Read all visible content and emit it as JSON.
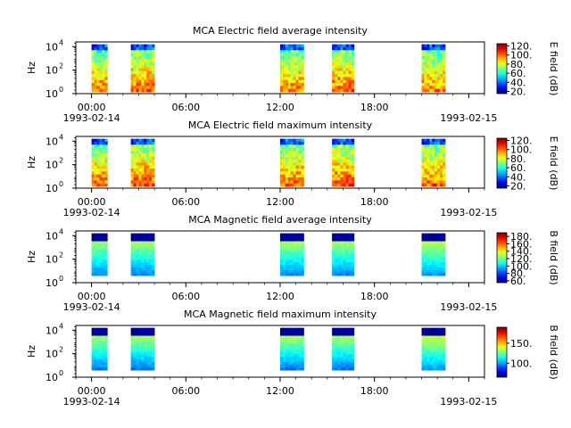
{
  "chart_data": [
    {
      "type": "heatmap",
      "title": "MCA  Electric field average intensity",
      "ylabel": "Hz",
      "colorbar_label": "E field (dB)",
      "colorbar_ticks": [
        "20.",
        "40.",
        "60.",
        "80.",
        "100.",
        "120."
      ],
      "colorbar_range": [
        15,
        125
      ],
      "x_ticks": [
        "00:00",
        "06:00",
        "12:00",
        "18:00"
      ],
      "x_tick_hours": [
        0,
        6,
        12,
        18
      ],
      "x_range_hours": [
        -1,
        25
      ],
      "date_start": "1993-02-14",
      "date_end": "1993-02-15",
      "y_ticks": [
        "10",
        "10",
        "10"
      ],
      "y_tick_exponents": [
        "0",
        "2",
        "4"
      ],
      "y_range_log10": [
        0,
        4.4
      ],
      "segments": [
        {
          "start_h": 0.0,
          "end_h": 1.0,
          "mean_db": 85
        },
        {
          "start_h": 2.5,
          "end_h": 4.0,
          "mean_db": 88
        },
        {
          "start_h": 12.0,
          "end_h": 13.5,
          "mean_db": 85
        },
        {
          "start_h": 15.3,
          "end_h": 16.7,
          "mean_db": 88
        },
        {
          "start_h": 21.0,
          "end_h": 22.5,
          "mean_db": 85
        }
      ]
    },
    {
      "type": "heatmap",
      "title": "MCA  Electric field maximum intensity",
      "ylabel": "Hz",
      "colorbar_label": "E field (dB)",
      "colorbar_ticks": [
        "20.",
        "40.",
        "60.",
        "80.",
        "100.",
        "120."
      ],
      "colorbar_range": [
        15,
        125
      ],
      "x_ticks": [
        "00:00",
        "06:00",
        "12:00",
        "18:00"
      ],
      "x_tick_hours": [
        0,
        6,
        12,
        18
      ],
      "x_range_hours": [
        -1,
        25
      ],
      "date_start": "1993-02-14",
      "date_end": "1993-02-15",
      "y_ticks": [
        "10",
        "10",
        "10"
      ],
      "y_tick_exponents": [
        "0",
        "2",
        "4"
      ],
      "y_range_log10": [
        0,
        4.4
      ],
      "segments": [
        {
          "start_h": 0.0,
          "end_h": 1.0,
          "mean_db": 88
        },
        {
          "start_h": 2.5,
          "end_h": 4.0,
          "mean_db": 90
        },
        {
          "start_h": 12.0,
          "end_h": 13.5,
          "mean_db": 88
        },
        {
          "start_h": 15.3,
          "end_h": 16.7,
          "mean_db": 90
        },
        {
          "start_h": 21.0,
          "end_h": 22.5,
          "mean_db": 88
        }
      ]
    },
    {
      "type": "heatmap",
      "title": "MCA  Magnetic field average intensity",
      "ylabel": "Hz",
      "colorbar_label": "B field (dB)",
      "colorbar_ticks": [
        "60.",
        "80.",
        "100.",
        "120.",
        "140.",
        "160.",
        "180."
      ],
      "colorbar_range": [
        55,
        190
      ],
      "x_ticks": [
        "00:00",
        "06:00",
        "12:00",
        "18:00"
      ],
      "x_tick_hours": [
        0,
        6,
        12,
        18
      ],
      "x_range_hours": [
        -1,
        25
      ],
      "date_start": "1993-02-14",
      "date_end": "1993-02-15",
      "y_ticks": [
        "10",
        "10",
        "10"
      ],
      "y_tick_exponents": [
        "0",
        "2",
        "4"
      ],
      "y_range_log10": [
        0,
        4.4
      ],
      "segments": [
        {
          "start_h": 0.0,
          "end_h": 1.0,
          "mean_db": 115
        },
        {
          "start_h": 2.5,
          "end_h": 4.0,
          "mean_db": 115
        },
        {
          "start_h": 12.0,
          "end_h": 13.5,
          "mean_db": 115
        },
        {
          "start_h": 15.3,
          "end_h": 16.7,
          "mean_db": 115
        },
        {
          "start_h": 21.0,
          "end_h": 22.5,
          "mean_db": 118
        }
      ]
    },
    {
      "type": "heatmap",
      "title": "MCA  Magnetic field maximum intensity",
      "ylabel": "Hz",
      "colorbar_label": "B field (dB)",
      "colorbar_ticks": [
        "100.",
        "150."
      ],
      "colorbar_range": [
        65,
        190
      ],
      "x_ticks": [
        "00:00",
        "06:00",
        "12:00",
        "18:00"
      ],
      "x_tick_hours": [
        0,
        6,
        12,
        18
      ],
      "x_range_hours": [
        -1,
        25
      ],
      "date_start": "1993-02-14",
      "date_end": "1993-02-15",
      "y_ticks": [
        "10",
        "10",
        "10"
      ],
      "y_tick_exponents": [
        "0",
        "2",
        "4"
      ],
      "y_range_log10": [
        0,
        4.4
      ],
      "segments": [
        {
          "start_h": 0.0,
          "end_h": 1.0,
          "mean_db": 120
        },
        {
          "start_h": 2.5,
          "end_h": 4.0,
          "mean_db": 120
        },
        {
          "start_h": 12.0,
          "end_h": 13.5,
          "mean_db": 120
        },
        {
          "start_h": 15.3,
          "end_h": 16.7,
          "mean_db": 120
        },
        {
          "start_h": 21.0,
          "end_h": 22.5,
          "mean_db": 125
        }
      ]
    }
  ]
}
